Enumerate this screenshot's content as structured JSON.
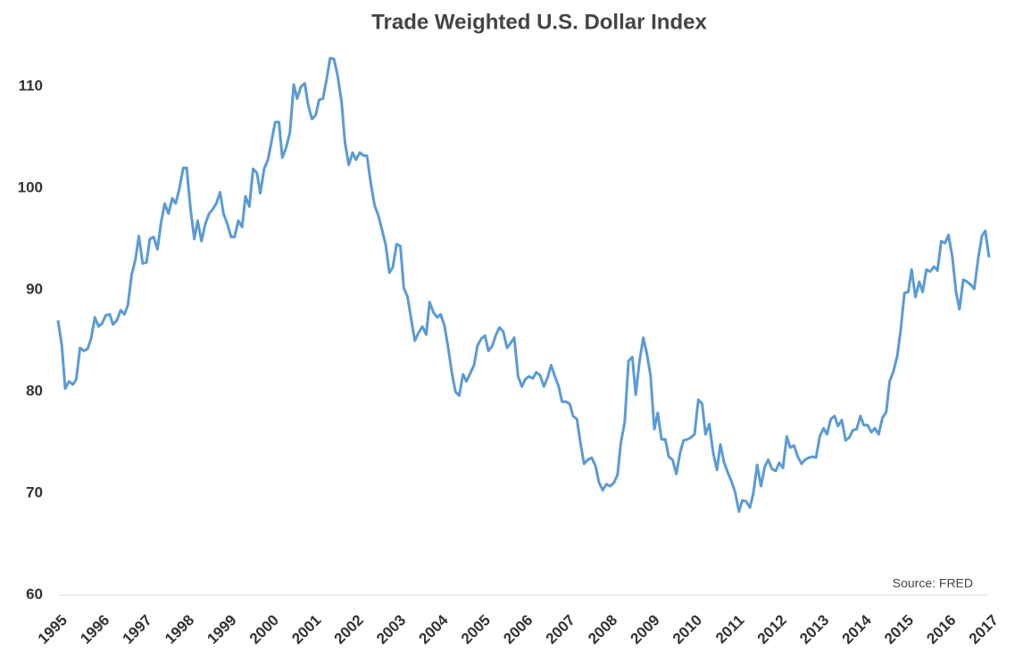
{
  "chart_data": {
    "type": "line",
    "title": "Trade Weighted U.S. Dollar Index",
    "source": "Source: FRED",
    "color": "#5b9bd5",
    "x": [
      1995.0,
      1995.09,
      1995.17,
      1995.26,
      1995.35,
      1995.43,
      1995.52,
      1995.61,
      1995.7,
      1995.78,
      1995.87,
      1995.96,
      1996.04,
      1996.13,
      1996.22,
      1996.3,
      1996.39,
      1996.48,
      1996.57,
      1996.65,
      1996.74,
      1996.83,
      1996.91,
      1997.0,
      1997.09,
      1997.17,
      1997.26,
      1997.35,
      1997.43,
      1997.52,
      1997.61,
      1997.7,
      1997.78,
      1997.87,
      1997.96,
      1998.04,
      1998.13,
      1998.22,
      1998.3,
      1998.39,
      1998.48,
      1998.57,
      1998.65,
      1998.74,
      1998.83,
      1998.91,
      1999.0,
      1999.09,
      1999.17,
      1999.26,
      1999.35,
      1999.43,
      1999.52,
      1999.61,
      1999.7,
      1999.78,
      1999.87,
      1999.96,
      2000.04,
      2000.13,
      2000.22,
      2000.3,
      2000.39,
      2000.48,
      2000.57,
      2000.65,
      2000.74,
      2000.83,
      2000.91,
      2001.0,
      2001.09,
      2001.17,
      2001.26,
      2001.35,
      2001.43,
      2001.52,
      2001.61,
      2001.7,
      2001.78,
      2001.87,
      2001.96,
      2002.04,
      2002.13,
      2002.22,
      2002.3,
      2002.39,
      2002.48,
      2002.57,
      2002.65,
      2002.74,
      2002.83,
      2002.91,
      2003.0,
      2003.09,
      2003.17,
      2003.26,
      2003.35,
      2003.43,
      2003.52,
      2003.61,
      2003.7,
      2003.78,
      2003.87,
      2003.96,
      2004.04,
      2004.13,
      2004.22,
      2004.3,
      2004.39,
      2004.48,
      2004.57,
      2004.65,
      2004.74,
      2004.83,
      2004.91,
      2005.0,
      2005.09,
      2005.17,
      2005.26,
      2005.35,
      2005.43,
      2005.52,
      2005.61,
      2005.7,
      2005.78,
      2005.87,
      2005.96,
      2006.04,
      2006.13,
      2006.22,
      2006.3,
      2006.39,
      2006.48,
      2006.57,
      2006.65,
      2006.74,
      2006.83,
      2006.91,
      2007.0,
      2007.09,
      2007.17,
      2007.26,
      2007.35,
      2007.43,
      2007.52,
      2007.61,
      2007.7,
      2007.78,
      2007.87,
      2007.96,
      2008.04,
      2008.13,
      2008.22,
      2008.3,
      2008.39,
      2008.48,
      2008.57,
      2008.65,
      2008.74,
      2008.83,
      2008.91,
      2009.0,
      2009.09,
      2009.17,
      2009.26,
      2009.35,
      2009.43,
      2009.52,
      2009.61,
      2009.7,
      2009.78,
      2009.87,
      2009.96,
      2010.04,
      2010.13,
      2010.22,
      2010.3,
      2010.39,
      2010.48,
      2010.57,
      2010.65,
      2010.74,
      2010.83,
      2010.91,
      2011.0,
      2011.09,
      2011.17,
      2011.26,
      2011.35,
      2011.43,
      2011.52,
      2011.61,
      2011.7,
      2011.78,
      2011.87,
      2011.96,
      2012.04,
      2012.13,
      2012.22,
      2012.3,
      2012.39,
      2012.48,
      2012.57,
      2012.65,
      2012.74,
      2012.83,
      2012.91,
      2013.0,
      2013.09,
      2013.17,
      2013.26,
      2013.35,
      2013.43,
      2013.52,
      2013.61,
      2013.7,
      2013.78,
      2013.87,
      2013.96,
      2014.04,
      2014.13,
      2014.22,
      2014.3,
      2014.39,
      2014.48,
      2014.57,
      2014.65,
      2014.74,
      2014.83,
      2014.91,
      2015.0,
      2015.09,
      2015.17,
      2015.26,
      2015.35,
      2015.43,
      2015.52,
      2015.61,
      2015.7,
      2015.78,
      2015.87,
      2015.96,
      2016.04,
      2016.13,
      2016.22,
      2016.3,
      2016.39,
      2016.48,
      2016.57,
      2016.65,
      2016.74,
      2016.83,
      2016.91,
      2017.0
    ],
    "values": [
      87,
      84.5,
      80.3,
      81,
      80.7,
      81.2,
      84.3,
      84,
      84.2,
      85.2,
      87.3,
      86.4,
      86.7,
      87.5,
      87.6,
      86.6,
      87,
      88,
      87.6,
      88.5,
      91.5,
      93,
      95.3,
      92.6,
      92.7,
      95,
      95.2,
      94,
      96.5,
      98.5,
      97.5,
      99,
      98.5,
      100,
      102,
      102,
      98,
      95,
      96.8,
      94.8,
      96.5,
      97.5,
      97.9,
      98.5,
      99.6,
      97.5,
      96.5,
      95.2,
      95.2,
      96.8,
      96.2,
      99.2,
      98.2,
      101.9,
      101.5,
      99.5,
      101.9,
      102.8,
      104.5,
      106.5,
      106.5,
      103,
      104,
      105.5,
      110.2,
      108.8,
      110,
      110.3,
      108.2,
      106.8,
      107.2,
      108.7,
      108.8,
      110.8,
      112.8,
      112.7,
      111,
      108.5,
      104.5,
      102.3,
      103.5,
      102.8,
      103.5,
      103.2,
      103.2,
      100.5,
      98.3,
      97.3,
      96,
      94.5,
      91.7,
      92.2,
      94.5,
      94.3,
      90.2,
      89.3,
      87,
      85,
      85.8,
      86.4,
      85.6,
      88.8,
      87.8,
      87.3,
      87.6,
      86.5,
      84.3,
      82,
      80,
      79.6,
      81.7,
      81,
      81.8,
      82.6,
      84.5,
      85.2,
      85.5,
      84,
      84.5,
      85.6,
      86.3,
      85.9,
      84.3,
      84.8,
      85.3,
      81.5,
      80.5,
      81.2,
      81.5,
      81.3,
      81.9,
      81.6,
      80.5,
      81.4,
      82.6,
      81.5,
      80.5,
      79,
      79,
      78.8,
      77.6,
      77.3,
      74.8,
      72.9,
      73.3,
      73.5,
      72.7,
      71.1,
      70.3,
      70.9,
      70.7,
      71,
      71.8,
      75,
      77,
      83,
      83.4,
      79.7,
      83,
      85.3,
      83.8,
      81.6,
      76.3,
      77.9,
      75.3,
      75.3,
      73.6,
      73.3,
      71.9,
      74,
      75.2,
      75.3,
      75.5,
      75.8,
      79.2,
      78.8,
      75.8,
      76.8,
      74,
      72.3,
      74.8,
      73,
      72,
      71.2,
      70.1,
      68.2,
      69.3,
      69.2,
      68.6,
      70,
      72.8,
      70.7,
      72.6,
      73.3,
      72.4,
      72.2,
      73,
      72.5,
      75.6,
      74.5,
      74.7,
      73.6,
      72.9,
      73.3,
      73.5,
      73.6,
      73.5,
      75.6,
      76.4,
      75.8,
      77.3,
      77.6,
      76.6,
      77.2,
      75.2,
      75.5,
      76.2,
      76.3,
      77.6,
      76.7,
      76.7,
      76,
      76.4,
      75.8,
      77.4,
      78,
      81,
      82,
      83.5,
      86,
      89.7,
      89.8,
      92,
      89.3,
      90.8,
      89.8,
      92,
      91.8,
      92.3,
      91.9,
      94.8,
      94.6,
      95.4,
      93.3,
      89.8,
      88.1,
      91,
      90.8,
      90.5,
      90.1,
      93,
      95.3,
      95.8,
      93.2
    ],
    "xlim": [
      1995,
      2017
    ],
    "xticks": [
      1995,
      1996,
      1997,
      1998,
      1999,
      2000,
      2001,
      2002,
      2003,
      2004,
      2005,
      2006,
      2007,
      2008,
      2009,
      2010,
      2011,
      2012,
      2013,
      2014,
      2015,
      2016,
      2017
    ],
    "ylim": [
      60,
      114
    ],
    "yticks": [
      60,
      70,
      80,
      90,
      100,
      110
    ]
  }
}
